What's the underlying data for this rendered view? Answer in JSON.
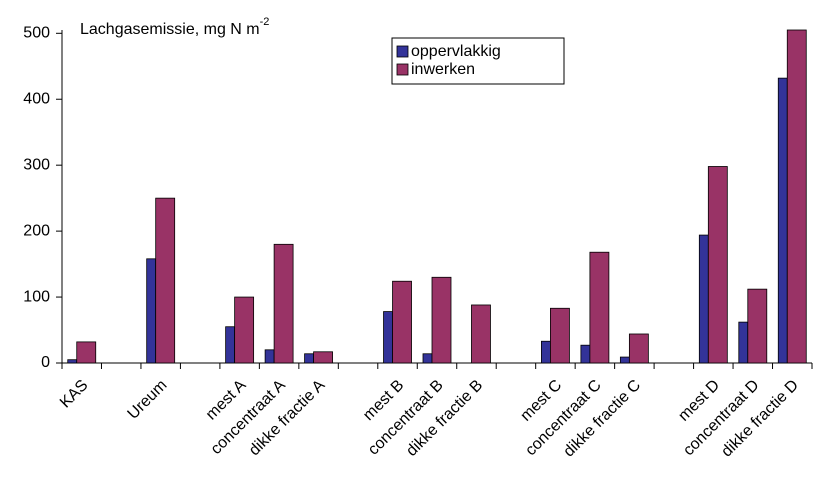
{
  "chart_data": {
    "type": "bar",
    "title": "Lachgasemissie, mg N m",
    "title_superscript": "-2",
    "categories": [
      "KAS",
      null,
      "Ureum",
      null,
      "mest A",
      "concentraat A",
      "dikke fractie A",
      null,
      "mest B",
      "concentraat B",
      "dikke fractie B",
      null,
      "mest C",
      "concentraat C",
      "dikke fractie C",
      null,
      "mest D",
      "concentraat D",
      "dikke fractie D"
    ],
    "series": [
      {
        "name": "oppervlakkig",
        "color": "#333399",
        "values": [
          5,
          null,
          158,
          null,
          55,
          20,
          14,
          null,
          78,
          14,
          null,
          null,
          33,
          27,
          9,
          null,
          194,
          62,
          432
        ]
      },
      {
        "name": "inwerken",
        "color": "#993366",
        "values": [
          32,
          null,
          250,
          null,
          100,
          180,
          17,
          null,
          124,
          130,
          88,
          null,
          83,
          168,
          44,
          null,
          298,
          112,
          505
        ]
      }
    ],
    "ylim": [
      0,
      505
    ],
    "yticks": [
      0,
      100,
      200,
      300,
      400,
      500
    ],
    "grid": false,
    "legend": "top"
  }
}
